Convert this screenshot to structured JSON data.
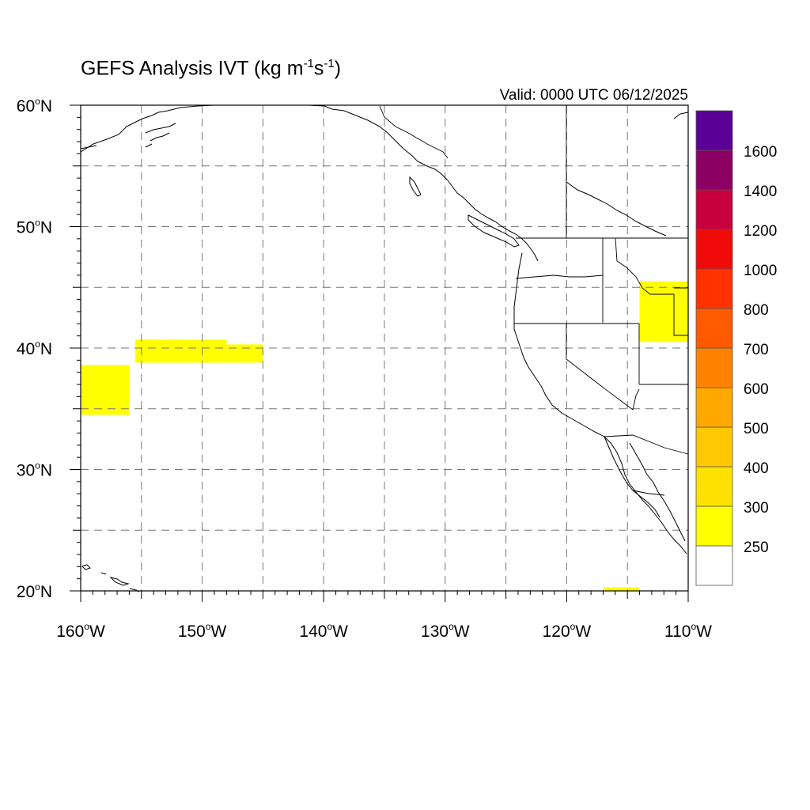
{
  "title": {
    "main": "GEFS Analysis IVT (kg m",
    "exp1": "-1",
    "mid": "s",
    "exp2": "-1",
    "end": ")"
  },
  "valid_label": "Valid: 0000 UTC 06/12/2025",
  "map": {
    "lon_range": [
      -160,
      -110
    ],
    "lat_range": [
      20,
      60
    ],
    "gridlines": "dashed every 5 degrees",
    "lat_ticks": [
      {
        "lat": 60,
        "label": "60",
        "suffix": "N"
      },
      {
        "lat": 50,
        "label": "50",
        "suffix": "N"
      },
      {
        "lat": 40,
        "label": "40",
        "suffix": "N"
      },
      {
        "lat": 30,
        "label": "30",
        "suffix": "N"
      },
      {
        "lat": 20,
        "label": "20",
        "suffix": "N"
      }
    ],
    "lon_ticks": [
      {
        "lon": -160,
        "label": "160",
        "suffix": "W"
      },
      {
        "lon": -150,
        "label": "150",
        "suffix": "W"
      },
      {
        "lon": -140,
        "label": "140",
        "suffix": "W"
      },
      {
        "lon": -130,
        "label": "130",
        "suffix": "W"
      },
      {
        "lon": -120,
        "label": "120",
        "suffix": "W"
      },
      {
        "lon": -110,
        "label": "110",
        "suffix": "W"
      }
    ]
  },
  "ivt_shading": {
    "color": "#ffff00",
    "regions": [
      {
        "name": "central-pacific-plume",
        "lon": [
          -155.5,
          -148
        ],
        "lat": [
          38.8,
          40.7
        ]
      },
      {
        "name": "pacific-plume-east",
        "lon": [
          -148,
          -145
        ],
        "lat": [
          38.8,
          40.3
        ]
      },
      {
        "name": "western-pacific-patch",
        "lon": [
          -160,
          -156
        ],
        "lat": [
          34.5,
          38.6
        ]
      },
      {
        "name": "great-basin-patch",
        "lon": [
          -114,
          -110
        ],
        "lat": [
          40.5,
          45.5
        ]
      },
      {
        "name": "mexico-sliver",
        "lon": [
          -117,
          -114
        ],
        "lat": [
          20,
          20.3
        ]
      }
    ]
  },
  "colorbar": {
    "labels": [
      "250",
      "300",
      "400",
      "500",
      "600",
      "700",
      "800",
      "1000",
      "1200",
      "1400",
      "1600"
    ],
    "colors": [
      "#ffffff",
      "#ffff00",
      "#ffe100",
      "#ffc800",
      "#ffa800",
      "#ff8200",
      "#ff5a00",
      "#ff3200",
      "#f00a0a",
      "#c8003c",
      "#8c0064",
      "#5a0096"
    ]
  }
}
